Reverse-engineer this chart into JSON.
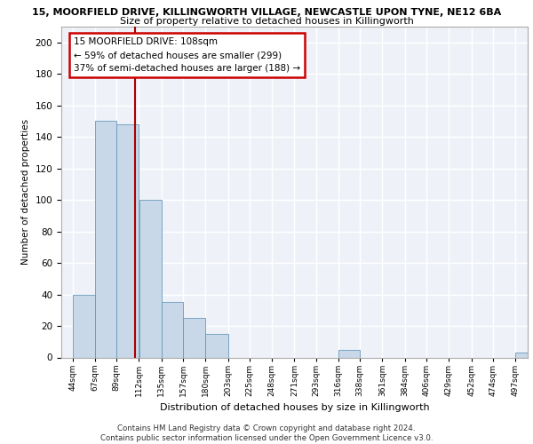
{
  "title_line1": "15, MOORFIELD DRIVE, KILLINGWORTH VILLAGE, NEWCASTLE UPON TYNE, NE12 6BA",
  "title_line2": "Size of property relative to detached houses in Killingworth",
  "xlabel": "Distribution of detached houses by size in Killingworth",
  "ylabel": "Number of detached properties",
  "bar_edges": [
    44,
    67,
    89,
    112,
    135,
    157,
    180,
    203,
    225,
    248,
    271,
    293,
    316,
    338,
    361,
    384,
    406,
    429,
    452,
    474,
    497
  ],
  "bar_heights": [
    40,
    150,
    148,
    100,
    35,
    25,
    15,
    0,
    0,
    0,
    0,
    0,
    5,
    0,
    0,
    0,
    0,
    0,
    0,
    0,
    3
  ],
  "property_size": 108,
  "bar_color": "#c8d8e8",
  "bar_edge_color": "#6699bb",
  "annotation_box_text": "15 MOORFIELD DRIVE: 108sqm\n← 59% of detached houses are smaller (299)\n37% of semi-detached houses are larger (188) →",
  "annotation_box_color": "#cc0000",
  "vline_color": "#aa0000",
  "background_color": "#eef2f8",
  "grid_color": "#ffffff",
  "footer_text": "Contains HM Land Registry data © Crown copyright and database right 2024.\nContains public sector information licensed under the Open Government Licence v3.0.",
  "ylim": [
    0,
    210
  ],
  "yticks": [
    0,
    20,
    40,
    60,
    80,
    100,
    120,
    140,
    160,
    180,
    200
  ],
  "tick_labels": [
    "44sqm",
    "67sqm",
    "89sqm",
    "112sqm",
    "135sqm",
    "157sqm",
    "180sqm",
    "203sqm",
    "225sqm",
    "248sqm",
    "271sqm",
    "293sqm",
    "316sqm",
    "338sqm",
    "361sqm",
    "384sqm",
    "406sqm",
    "429sqm",
    "452sqm",
    "474sqm",
    "497sqm"
  ]
}
